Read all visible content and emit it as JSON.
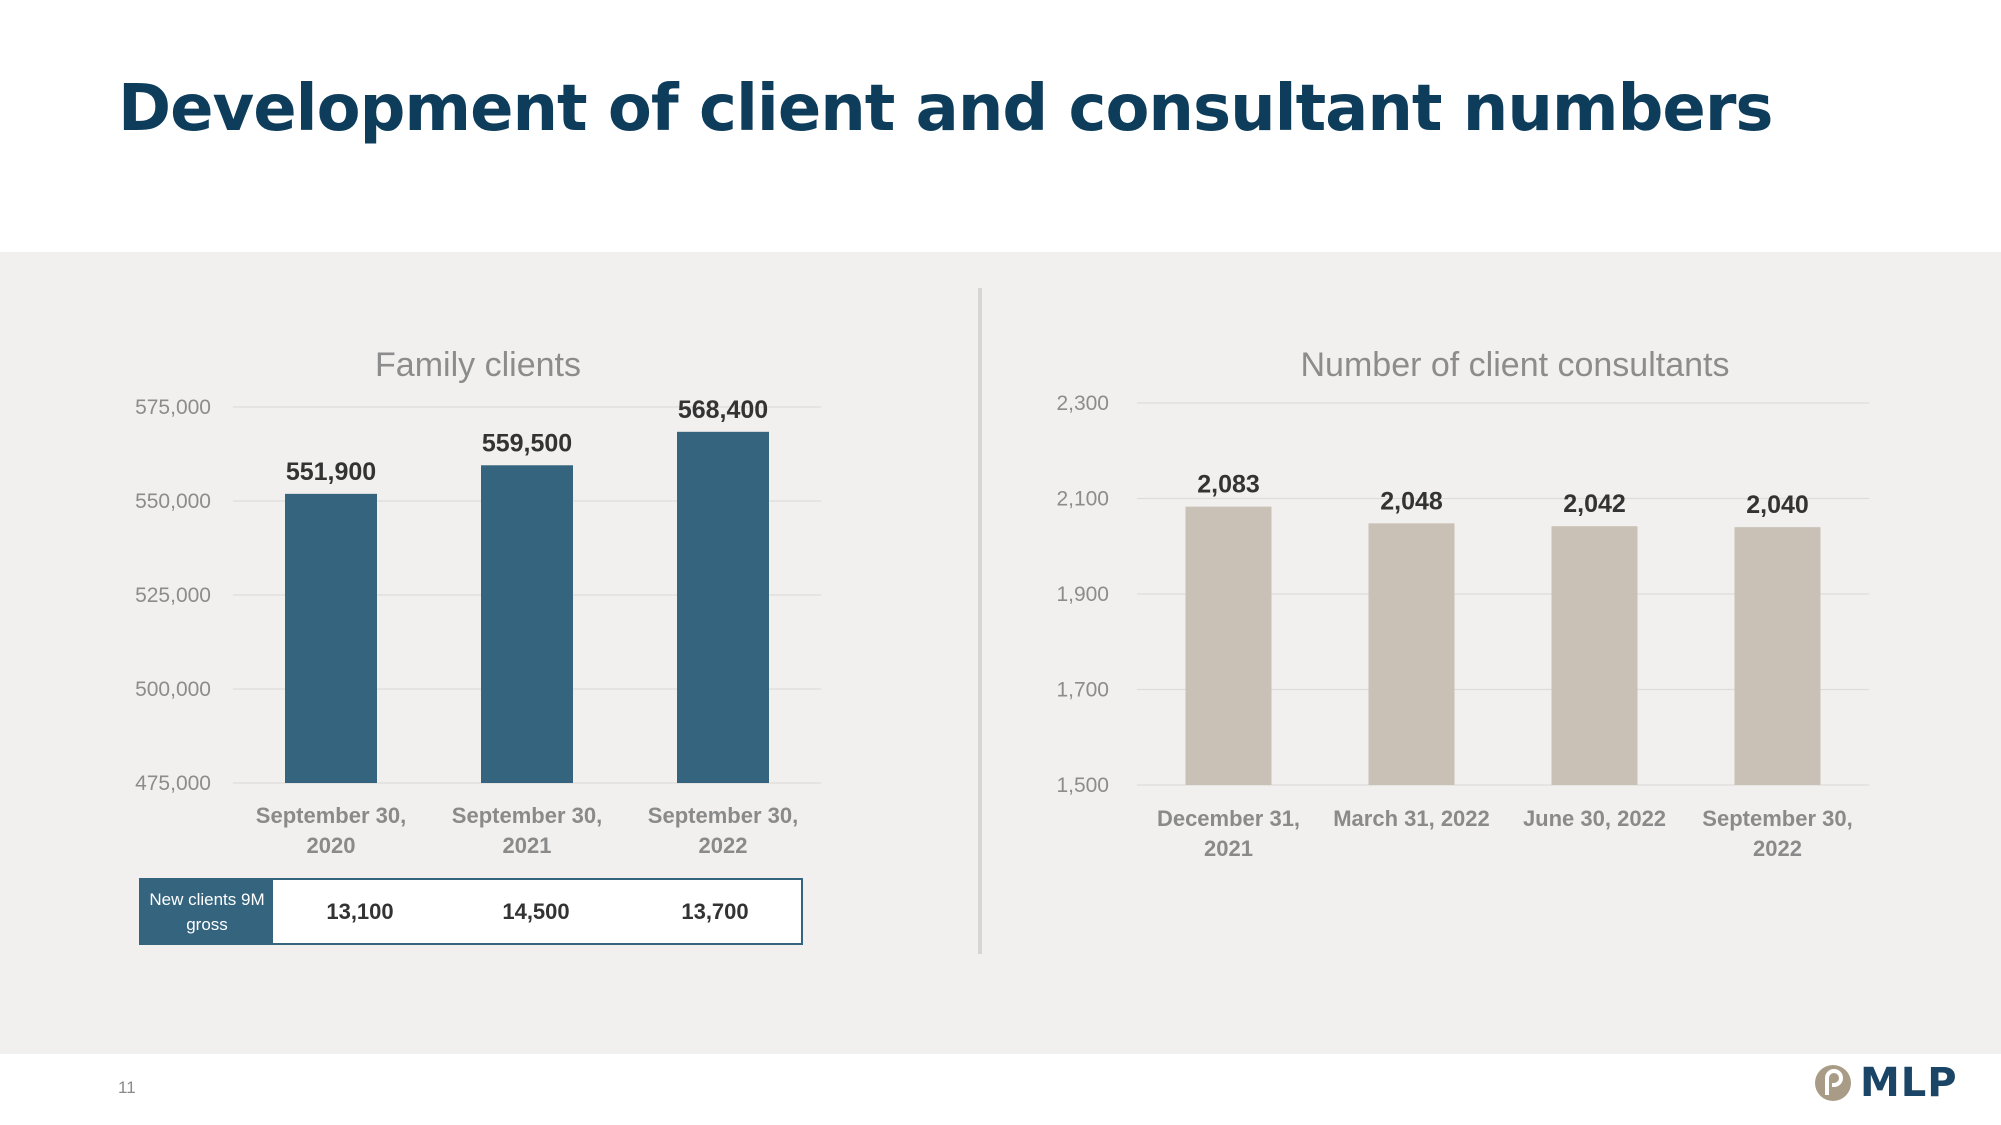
{
  "slide": {
    "title": "Development of client and consultant numbers",
    "page_number": "11",
    "logo_text": "MLP"
  },
  "colors": {
    "title": "#0e3d5c",
    "family_bar": "#35647f",
    "consultant_bar": "#c9c1b5",
    "panel": "#f1f0ef"
  },
  "chart_data": [
    {
      "type": "bar",
      "title": "Family clients",
      "categories": [
        [
          "September 30,",
          "2020"
        ],
        [
          "September 30,",
          "2021"
        ],
        [
          "September 30,",
          "2022"
        ]
      ],
      "values": [
        551900,
        559500,
        568400
      ],
      "data_labels": [
        "551,900",
        "559,500",
        "568,400"
      ],
      "ylim": [
        475000,
        575000
      ],
      "yticks": [
        475000,
        500000,
        525000,
        550000,
        575000
      ],
      "ytick_labels": [
        "475,000",
        "500,000",
        "525,000",
        "550,000",
        "575,000"
      ],
      "grid": true
    },
    {
      "type": "bar",
      "title": "Number of client consultants",
      "categories": [
        [
          "December 31,",
          "2021"
        ],
        [
          "March 31, 2022"
        ],
        [
          "June 30, 2022"
        ],
        [
          "September 30,",
          "2022"
        ]
      ],
      "values": [
        2083,
        2048,
        2042,
        2040
      ],
      "data_labels": [
        "2,083",
        "2,048",
        "2,042",
        "2,040"
      ],
      "ylim": [
        1500,
        2300
      ],
      "yticks": [
        1500,
        1700,
        1900,
        2100,
        2300
      ],
      "ytick_labels": [
        "1,500",
        "1,700",
        "1,900",
        "2,100",
        "2,300"
      ],
      "grid": true
    }
  ],
  "new_clients": {
    "label": "New clients 9M gross",
    "values": [
      "13,100",
      "14,500",
      "13,700"
    ]
  }
}
